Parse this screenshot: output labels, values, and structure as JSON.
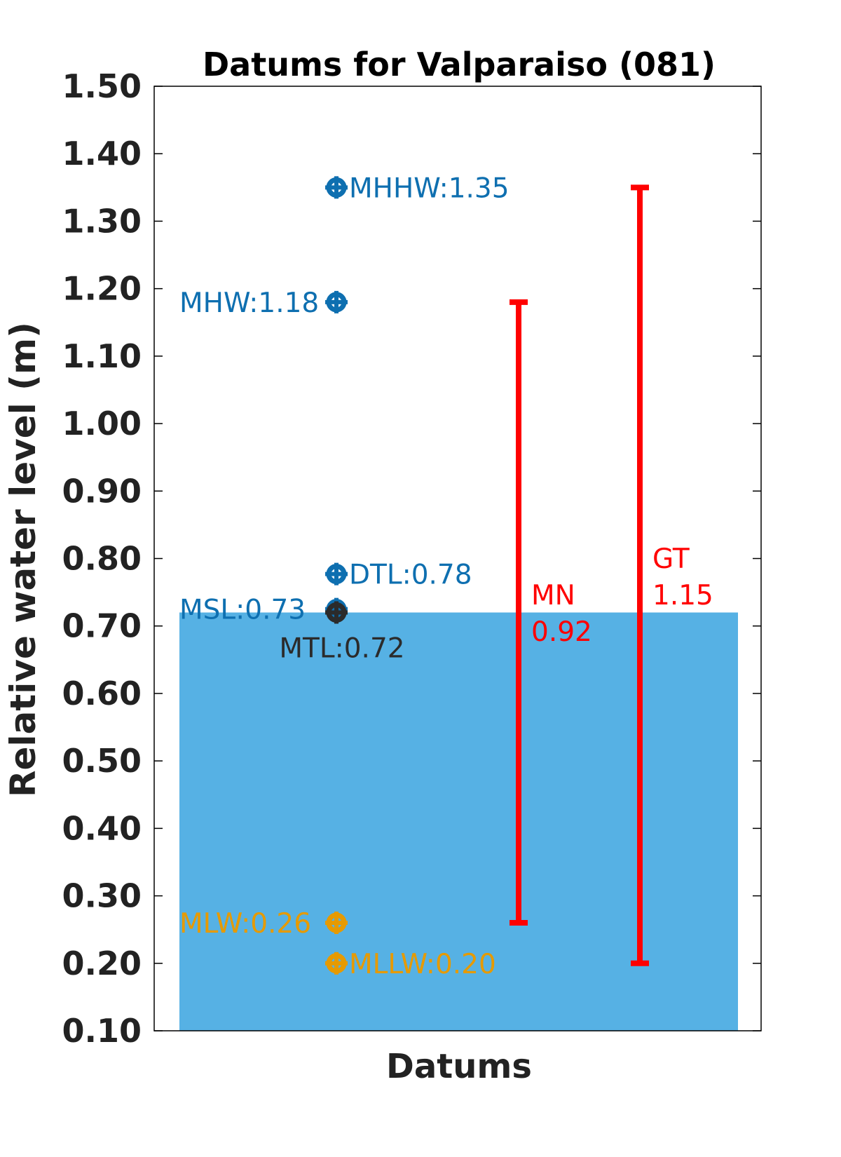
{
  "chart_data": {
    "type": "scatter",
    "title": "Datums for Valparaiso (081)",
    "xlabel": "Datums",
    "ylabel": "Relative water level (m)",
    "ylim": [
      0.1,
      1.5
    ],
    "yticks": [
      "0.10",
      "0.20",
      "0.30",
      "0.40",
      "0.50",
      "0.60",
      "0.70",
      "0.80",
      "0.90",
      "1.00",
      "1.10",
      "1.20",
      "1.30",
      "1.40",
      "1.50"
    ],
    "grid": false,
    "background_bar": {
      "from": 0.1,
      "to": 0.72,
      "color": "#56B1E4"
    },
    "datums": [
      {
        "label": "MHHW:1.35",
        "value": 1.35,
        "color": "#0E6FB0",
        "label_side": "right"
      },
      {
        "label": "MHW:1.18",
        "value": 1.18,
        "color": "#0E6FB0",
        "label_side": "left"
      },
      {
        "label": "DTL:0.78",
        "value": 0.777,
        "color": "#0E6FB0",
        "label_side": "right"
      },
      {
        "label": "MSL:0.73",
        "value": 0.725,
        "color": "#0E6FB0",
        "label_side": "left"
      },
      {
        "label": "MTL:0.72",
        "value": 0.72,
        "color": "#2B2B2B",
        "label_side": "below"
      },
      {
        "label": "MLW:0.26",
        "value": 0.26,
        "color": "#E69A00",
        "label_side": "left"
      },
      {
        "label": "MLLW:0.20",
        "value": 0.2,
        "color": "#E69A00",
        "label_side": "right"
      }
    ],
    "ranges": [
      {
        "name": "MN",
        "value_label": "0.92",
        "from": 0.26,
        "to": 1.18,
        "color": "#FF0000"
      },
      {
        "name": "GT",
        "value_label": "1.15",
        "from": 0.2,
        "to": 1.35,
        "color": "#FF0000"
      }
    ]
  }
}
